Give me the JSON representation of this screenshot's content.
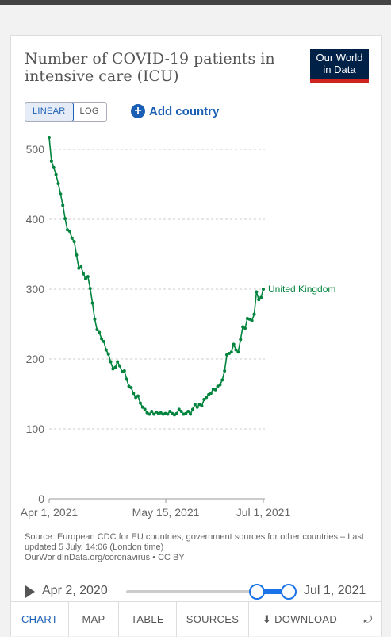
{
  "header": {
    "title": "Number of COVID-19 patients in intensive care (ICU)",
    "logo_line1": "Our World",
    "logo_line2": "in Data"
  },
  "controls": {
    "linear_label": "LINEAR",
    "log_label": "LOG",
    "add_country_label": "Add country",
    "selected_scale": "LINEAR"
  },
  "chart_data": {
    "type": "line",
    "title": "Number of COVID-19 patients in intensive care (ICU)",
    "xlabel": "",
    "ylabel": "",
    "x_ticks": [
      "Apr 1, 2021",
      "May 15, 2021",
      "Jul 1, 2021"
    ],
    "y_ticks": [
      0,
      100,
      200,
      300,
      400,
      500
    ],
    "ylim": [
      0,
      520
    ],
    "grid": "horizontal dashed",
    "color": "#00843d",
    "series": [
      {
        "name": "United Kingdom",
        "x_start": "Apr 1, 2021",
        "x_end": "Jul 1, 2021",
        "values": [
          517,
          483,
          474,
          464,
          451,
          436,
          420,
          401,
          385,
          383,
          373,
          368,
          349,
          330,
          332,
          322,
          315,
          318,
          301,
          280,
          257,
          242,
          238,
          229,
          225,
          213,
          207,
          196,
          186,
          188,
          196,
          190,
          182,
          183,
          171,
          161,
          159,
          151,
          145,
          147,
          137,
          131,
          128,
          123,
          121,
          125,
          121,
          124,
          122,
          123,
          121,
          122,
          121,
          125,
          122,
          120,
          122,
          128,
          125,
          121,
          122,
          125,
          121,
          128,
          135,
          131,
          135,
          133,
          142,
          145,
          149,
          151,
          157,
          156,
          161,
          163,
          170,
          183,
          206,
          208,
          210,
          221,
          213,
          210,
          228,
          246,
          244,
          258,
          257,
          255,
          264,
          296,
          285,
          288,
          300
        ]
      }
    ]
  },
  "source": {
    "text": "Source: European CDC for EU countries, government sources for other countries – Last updated 5 July, 14:06 (London time)",
    "url_text": "OurWorldInData.org/coronavirus • CC BY"
  },
  "timeline": {
    "start_label": "Apr 2, 2020",
    "end_label": "Jul 1, 2021",
    "play_icon": "play-icon"
  },
  "tabs": [
    {
      "label": "CHART"
    },
    {
      "label": "MAP"
    },
    {
      "label": "TABLE"
    },
    {
      "label": "SOURCES"
    },
    {
      "label": "DOWNLOAD"
    },
    {
      "label": ""
    }
  ],
  "colors": {
    "accent": "#1a5fb4",
    "series": "#00843d",
    "logo_bg": "#002147",
    "logo_bar": "#ce261e"
  }
}
